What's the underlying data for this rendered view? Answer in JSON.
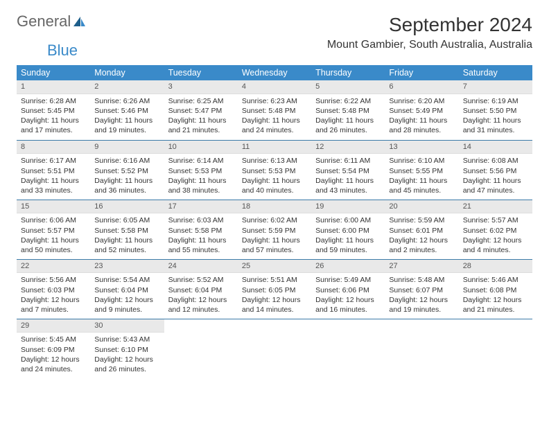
{
  "brand": {
    "word1": "General",
    "word2": "Blue"
  },
  "title": "September 2024",
  "location": "Mount Gambier, South Australia, Australia",
  "colors": {
    "header_bg": "#3a8ac9",
    "header_text": "#ffffff",
    "daynum_bg": "#e9e9e9",
    "row_divider": "#3a7aa8",
    "text": "#333333"
  },
  "daynames": [
    "Sunday",
    "Monday",
    "Tuesday",
    "Wednesday",
    "Thursday",
    "Friday",
    "Saturday"
  ],
  "weeks": [
    [
      {
        "n": "1",
        "sr": "Sunrise: 6:28 AM",
        "ss": "Sunset: 5:45 PM",
        "d1": "Daylight: 11 hours",
        "d2": "and 17 minutes."
      },
      {
        "n": "2",
        "sr": "Sunrise: 6:26 AM",
        "ss": "Sunset: 5:46 PM",
        "d1": "Daylight: 11 hours",
        "d2": "and 19 minutes."
      },
      {
        "n": "3",
        "sr": "Sunrise: 6:25 AM",
        "ss": "Sunset: 5:47 PM",
        "d1": "Daylight: 11 hours",
        "d2": "and 21 minutes."
      },
      {
        "n": "4",
        "sr": "Sunrise: 6:23 AM",
        "ss": "Sunset: 5:48 PM",
        "d1": "Daylight: 11 hours",
        "d2": "and 24 minutes."
      },
      {
        "n": "5",
        "sr": "Sunrise: 6:22 AM",
        "ss": "Sunset: 5:48 PM",
        "d1": "Daylight: 11 hours",
        "d2": "and 26 minutes."
      },
      {
        "n": "6",
        "sr": "Sunrise: 6:20 AM",
        "ss": "Sunset: 5:49 PM",
        "d1": "Daylight: 11 hours",
        "d2": "and 28 minutes."
      },
      {
        "n": "7",
        "sr": "Sunrise: 6:19 AM",
        "ss": "Sunset: 5:50 PM",
        "d1": "Daylight: 11 hours",
        "d2": "and 31 minutes."
      }
    ],
    [
      {
        "n": "8",
        "sr": "Sunrise: 6:17 AM",
        "ss": "Sunset: 5:51 PM",
        "d1": "Daylight: 11 hours",
        "d2": "and 33 minutes."
      },
      {
        "n": "9",
        "sr": "Sunrise: 6:16 AM",
        "ss": "Sunset: 5:52 PM",
        "d1": "Daylight: 11 hours",
        "d2": "and 36 minutes."
      },
      {
        "n": "10",
        "sr": "Sunrise: 6:14 AM",
        "ss": "Sunset: 5:53 PM",
        "d1": "Daylight: 11 hours",
        "d2": "and 38 minutes."
      },
      {
        "n": "11",
        "sr": "Sunrise: 6:13 AM",
        "ss": "Sunset: 5:53 PM",
        "d1": "Daylight: 11 hours",
        "d2": "and 40 minutes."
      },
      {
        "n": "12",
        "sr": "Sunrise: 6:11 AM",
        "ss": "Sunset: 5:54 PM",
        "d1": "Daylight: 11 hours",
        "d2": "and 43 minutes."
      },
      {
        "n": "13",
        "sr": "Sunrise: 6:10 AM",
        "ss": "Sunset: 5:55 PM",
        "d1": "Daylight: 11 hours",
        "d2": "and 45 minutes."
      },
      {
        "n": "14",
        "sr": "Sunrise: 6:08 AM",
        "ss": "Sunset: 5:56 PM",
        "d1": "Daylight: 11 hours",
        "d2": "and 47 minutes."
      }
    ],
    [
      {
        "n": "15",
        "sr": "Sunrise: 6:06 AM",
        "ss": "Sunset: 5:57 PM",
        "d1": "Daylight: 11 hours",
        "d2": "and 50 minutes."
      },
      {
        "n": "16",
        "sr": "Sunrise: 6:05 AM",
        "ss": "Sunset: 5:58 PM",
        "d1": "Daylight: 11 hours",
        "d2": "and 52 minutes."
      },
      {
        "n": "17",
        "sr": "Sunrise: 6:03 AM",
        "ss": "Sunset: 5:58 PM",
        "d1": "Daylight: 11 hours",
        "d2": "and 55 minutes."
      },
      {
        "n": "18",
        "sr": "Sunrise: 6:02 AM",
        "ss": "Sunset: 5:59 PM",
        "d1": "Daylight: 11 hours",
        "d2": "and 57 minutes."
      },
      {
        "n": "19",
        "sr": "Sunrise: 6:00 AM",
        "ss": "Sunset: 6:00 PM",
        "d1": "Daylight: 11 hours",
        "d2": "and 59 minutes."
      },
      {
        "n": "20",
        "sr": "Sunrise: 5:59 AM",
        "ss": "Sunset: 6:01 PM",
        "d1": "Daylight: 12 hours",
        "d2": "and 2 minutes."
      },
      {
        "n": "21",
        "sr": "Sunrise: 5:57 AM",
        "ss": "Sunset: 6:02 PM",
        "d1": "Daylight: 12 hours",
        "d2": "and 4 minutes."
      }
    ],
    [
      {
        "n": "22",
        "sr": "Sunrise: 5:56 AM",
        "ss": "Sunset: 6:03 PM",
        "d1": "Daylight: 12 hours",
        "d2": "and 7 minutes."
      },
      {
        "n": "23",
        "sr": "Sunrise: 5:54 AM",
        "ss": "Sunset: 6:04 PM",
        "d1": "Daylight: 12 hours",
        "d2": "and 9 minutes."
      },
      {
        "n": "24",
        "sr": "Sunrise: 5:52 AM",
        "ss": "Sunset: 6:04 PM",
        "d1": "Daylight: 12 hours",
        "d2": "and 12 minutes."
      },
      {
        "n": "25",
        "sr": "Sunrise: 5:51 AM",
        "ss": "Sunset: 6:05 PM",
        "d1": "Daylight: 12 hours",
        "d2": "and 14 minutes."
      },
      {
        "n": "26",
        "sr": "Sunrise: 5:49 AM",
        "ss": "Sunset: 6:06 PM",
        "d1": "Daylight: 12 hours",
        "d2": "and 16 minutes."
      },
      {
        "n": "27",
        "sr": "Sunrise: 5:48 AM",
        "ss": "Sunset: 6:07 PM",
        "d1": "Daylight: 12 hours",
        "d2": "and 19 minutes."
      },
      {
        "n": "28",
        "sr": "Sunrise: 5:46 AM",
        "ss": "Sunset: 6:08 PM",
        "d1": "Daylight: 12 hours",
        "d2": "and 21 minutes."
      }
    ],
    [
      {
        "n": "29",
        "sr": "Sunrise: 5:45 AM",
        "ss": "Sunset: 6:09 PM",
        "d1": "Daylight: 12 hours",
        "d2": "and 24 minutes."
      },
      {
        "n": "30",
        "sr": "Sunrise: 5:43 AM",
        "ss": "Sunset: 6:10 PM",
        "d1": "Daylight: 12 hours",
        "d2": "and 26 minutes."
      },
      null,
      null,
      null,
      null,
      null
    ]
  ]
}
